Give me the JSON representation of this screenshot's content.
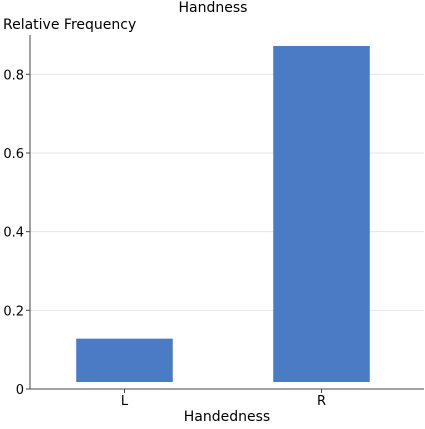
{
  "chart_data": {
    "type": "bar",
    "title": "Handness",
    "xlabel": "Handedness",
    "ylabel": "Relative Frequency",
    "categories": [
      "L",
      "R"
    ],
    "values": [
      0.128,
      0.872
    ],
    "ylim": [
      0,
      0.9
    ],
    "yticks": [
      0,
      0.2,
      0.4,
      0.6,
      0.8
    ],
    "ytick_labels": [
      "0",
      "0.2",
      "0.4",
      "0.6",
      "0.8"
    ],
    "grid": true,
    "legend": "none",
    "bar_color": "#4a7bc4",
    "grid_color": "#e6e6e6",
    "axis_color": "#444444"
  }
}
